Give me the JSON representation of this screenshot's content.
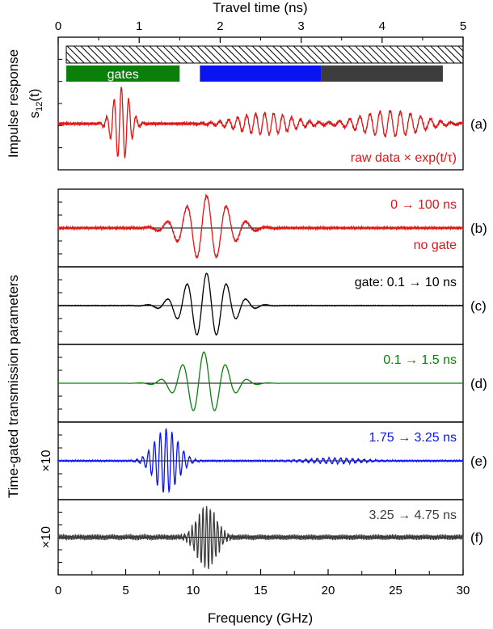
{
  "chart_data": {
    "type": "line",
    "top_axis": {
      "label": "Travel time (ns)",
      "range": [
        0,
        5
      ],
      "ticks": [
        "0",
        "1",
        "2",
        "3",
        "4",
        "5"
      ]
    },
    "bottom_axis": {
      "label": "Frequency (GHz)",
      "range": [
        0,
        30
      ],
      "ticks": [
        "0",
        "5",
        "10",
        "15",
        "20",
        "25",
        "30"
      ]
    },
    "gate_bars": {
      "hatch_range_ns": [
        0.1,
        5
      ],
      "gates": [
        {
          "label": "gates",
          "start_ns": 0.1,
          "end_ns": 1.5,
          "color": "#0a800a"
        },
        {
          "label": "",
          "start_ns": 1.75,
          "end_ns": 3.25,
          "color": "#0a14f0"
        },
        {
          "label": "",
          "start_ns": 3.25,
          "end_ns": 4.75,
          "color": "#3c3c3c"
        }
      ]
    },
    "group_labels": {
      "top": "Impulse response",
      "top_sub": "s",
      "top_sub_index": "12",
      "top_sub_arg": "(t)",
      "bottom": "Time-gated transmission parameters"
    },
    "panels": [
      {
        "id": "a",
        "tag": "(a)",
        "annotation": "raw data × exp(t/τ)",
        "annotation2": "",
        "scale_note": "",
        "color": "#e01515",
        "domain": "time",
        "packets": [
          {
            "center": 0.78,
            "width": 0.14,
            "amp": 0.95,
            "freq": 11
          },
          {
            "center": 2.55,
            "width": 0.45,
            "amp": 0.28,
            "freq": 9
          },
          {
            "center": 4.1,
            "width": 0.5,
            "amp": 0.33,
            "freq": 8
          }
        ],
        "noise": 0.04
      },
      {
        "id": "b",
        "tag": "(b)",
        "annotation": "0 → 100 ns",
        "annotation2": "no gate",
        "scale_note": "",
        "color": "#e01515",
        "domain": "freq",
        "packets": [
          {
            "center": 11,
            "width": 2.3,
            "amp": 0.95,
            "freq": 0.68
          }
        ],
        "noise": 0.04
      },
      {
        "id": "c",
        "tag": "(c)",
        "annotation": "gate: 0.1 → 10 ns",
        "annotation2": "",
        "scale_note": "",
        "color": "#000000",
        "domain": "freq",
        "packets": [
          {
            "center": 11,
            "width": 2.3,
            "amp": 0.95,
            "freq": 0.68
          }
        ],
        "noise": 0.01
      },
      {
        "id": "d",
        "tag": "(d)",
        "annotation": "0.1 → 1.5 ns",
        "annotation2": "",
        "scale_note": "",
        "color": "#0a800a",
        "domain": "freq",
        "packets": [
          {
            "center": 10.8,
            "width": 2.2,
            "amp": 0.92,
            "freq": 0.62
          }
        ],
        "noise": 0.0
      },
      {
        "id": "e",
        "tag": "(e)",
        "annotation": "1.75 → 3.25 ns",
        "annotation2": "",
        "scale_note": "×10",
        "color": "#0a14f0",
        "domain": "freq",
        "packets": [
          {
            "center": 8.0,
            "width": 1.2,
            "amp": 0.95,
            "freq": 2.3
          },
          {
            "center": 20.5,
            "width": 2.5,
            "amp": 0.08,
            "freq": 2.3
          }
        ],
        "noise": 0.02
      },
      {
        "id": "f",
        "tag": "(f)",
        "annotation": "3.25 → 4.75 ns",
        "annotation2": "",
        "scale_note": "×10",
        "color": "#3c3c3c",
        "domain": "freq",
        "packets": [
          {
            "center": 11.0,
            "width": 1.0,
            "amp": 0.95,
            "freq": 3.7
          }
        ],
        "noise": 0.09
      }
    ]
  }
}
